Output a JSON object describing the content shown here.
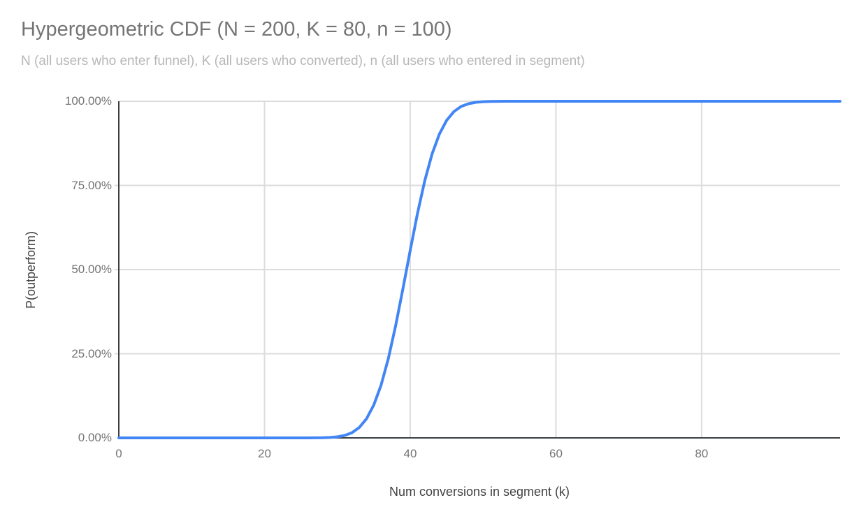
{
  "header": {
    "title": "Hypergeometric CDF (N = 200, K = 80, n = 100)",
    "subtitle": "N (all users who enter funnel), K (all users who converted), n (all users who entered in segment)"
  },
  "axes": {
    "x_title": "Num conversions in segment (k)",
    "y_title": "P(outperform)",
    "x_tick_labels": [
      "0",
      "20",
      "40",
      "60",
      "80"
    ],
    "y_tick_labels": [
      "0.00%",
      "25.00%",
      "50.00%",
      "75.00%",
      "100.00%"
    ]
  },
  "colors": {
    "series_line": "#4285f4",
    "grid_line": "#dcdcdc",
    "axis_line": "#3c4043",
    "tick_label": "#757575",
    "axis_title": "#424242",
    "title": "#757575",
    "subtitle": "#b7b7b7",
    "background": "#ffffff"
  },
  "chart_data": {
    "type": "line",
    "title": "Hypergeometric CDF (N = 200, K = 80, n = 100)",
    "subtitle": "N (all users who enter funnel), K (all users who converted), n (all users who entered in segment)",
    "xlabel": "Num conversions in segment (k)",
    "ylabel": "P(outperform)",
    "params": {
      "N": 200,
      "K": 80,
      "n": 100
    },
    "xlim": [
      0,
      99
    ],
    "ylim": [
      0,
      1
    ],
    "x_start": 0,
    "x_step": 1,
    "x_ticks": [
      0,
      20,
      40,
      60,
      80
    ],
    "y_ticks": [
      0,
      0.25,
      0.5,
      0.75,
      1
    ],
    "y_tick_format": "percent_2dp",
    "grid": true,
    "legend": "none",
    "series": [
      {
        "name": "P(outperform)",
        "color": "#4285f4",
        "values": [
          0,
          0,
          0,
          0,
          0,
          0,
          0,
          0,
          0,
          0,
          0,
          0,
          0,
          0,
          0,
          0,
          0,
          0,
          0,
          0,
          0,
          0,
          0,
          0,
          0,
          0,
          0.0001,
          0.0002,
          0.0005,
          0.0013,
          0.0031,
          0.0072,
          0.0154,
          0.0307,
          0.0567,
          0.0976,
          0.1568,
          0.2358,
          0.3329,
          0.4428,
          0.5572,
          0.6671,
          0.7642,
          0.8432,
          0.9024,
          0.9433,
          0.9693,
          0.9846,
          0.9928,
          0.9969,
          0.9988,
          0.9995,
          0.9998,
          0.9999,
          1,
          1,
          1,
          1,
          1,
          1,
          1,
          1,
          1,
          1,
          1,
          1,
          1,
          1,
          1,
          1,
          1,
          1,
          1,
          1,
          1,
          1,
          1,
          1,
          1,
          1,
          1,
          1,
          1,
          1,
          1,
          1,
          1,
          1,
          1,
          1,
          1,
          1,
          1,
          1,
          1,
          1,
          1,
          1,
          1,
          1
        ]
      }
    ]
  }
}
